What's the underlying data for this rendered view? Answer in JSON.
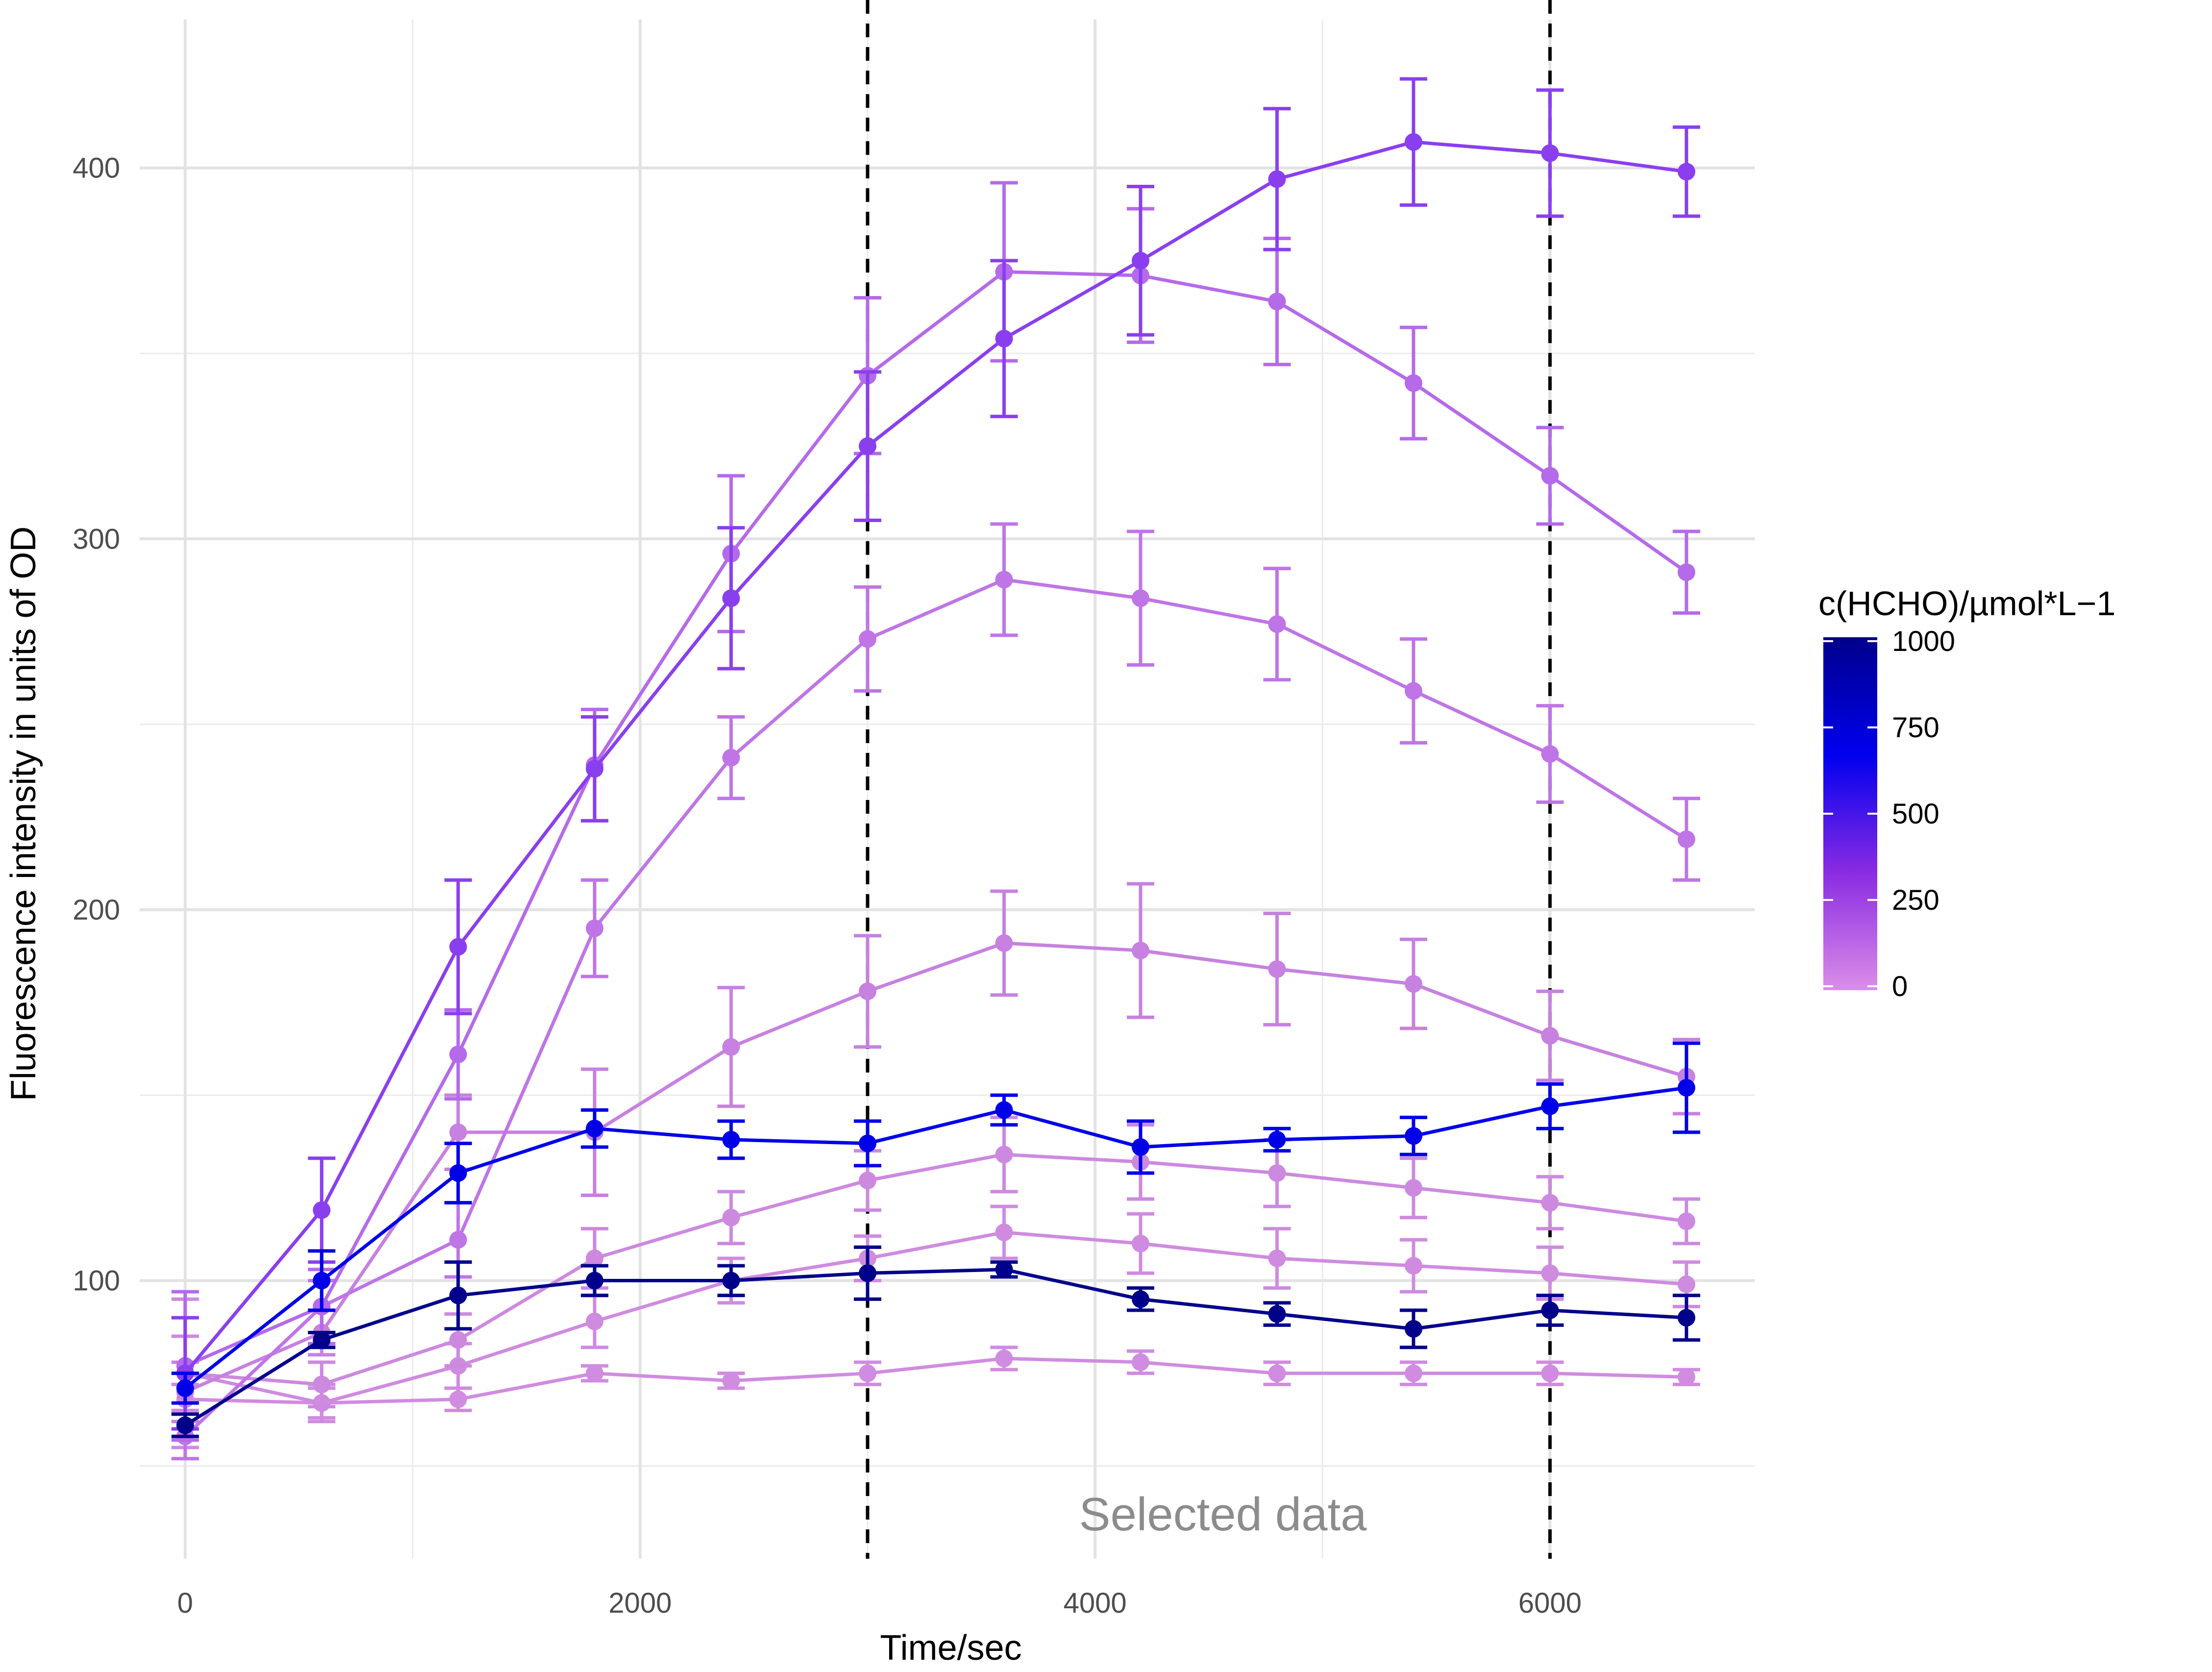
{
  "chart_data": {
    "type": "line",
    "title": "",
    "xlabel": "Time/sec",
    "ylabel": "Fluorescence intensity in units of OD",
    "xlim": [
      -200,
      6900
    ],
    "ylim": [
      25,
      440
    ],
    "x_ticks": [
      0,
      2000,
      4000,
      6000
    ],
    "y_ticks": [
      100,
      200,
      300,
      400
    ],
    "grid": true,
    "x": [
      0,
      600,
      1200,
      1800,
      2400,
      3000,
      3600,
      4200,
      4800,
      5400,
      6000,
      6600
    ],
    "annotation": "Selected data",
    "vlines": [
      3000,
      6000
    ],
    "legend": {
      "title": "c(HCHO)/µmol*L−1",
      "position": "right",
      "ticks": [
        "1000",
        "750",
        "500",
        "250",
        "0"
      ],
      "gradient": [
        "#00008b",
        "#0000ee",
        "#8a2be2",
        "#da8ee8"
      ]
    },
    "series": [
      {
        "conc": 0,
        "color": "#d08ce0",
        "values": [
          68,
          67,
          68,
          75,
          73,
          75,
          79,
          78,
          75,
          75,
          75,
          74
        ],
        "errors": [
          4,
          4,
          3,
          2,
          2,
          3,
          3,
          3,
          3,
          3,
          3,
          2
        ]
      },
      {
        "conc": 15,
        "color": "#cf8be0",
        "values": [
          75,
          67,
          77,
          89,
          100,
          106,
          113,
          110,
          106,
          104,
          102,
          99
        ],
        "errors": [
          20,
          5,
          6,
          7,
          6,
          6,
          7,
          8,
          8,
          7,
          7,
          6
        ]
      },
      {
        "conc": 25,
        "color": "#cd89e0",
        "values": [
          75,
          72,
          84,
          106,
          117,
          127,
          134,
          132,
          129,
          125,
          121,
          116
        ],
        "errors": [
          10,
          6,
          7,
          8,
          7,
          8,
          10,
          10,
          9,
          8,
          7,
          6
        ]
      },
      {
        "conc": 50,
        "color": "#c781e0",
        "values": [
          70,
          86,
          140,
          140,
          163,
          178,
          191,
          189,
          184,
          180,
          166,
          155
        ],
        "errors": [
          8,
          6,
          10,
          17,
          16,
          15,
          14,
          18,
          15,
          12,
          12,
          10
        ]
      },
      {
        "conc": 100,
        "color": "#bf75e6",
        "values": [
          58,
          93,
          111,
          195,
          241,
          273,
          289,
          284,
          277,
          259,
          242,
          219
        ],
        "errors": [
          6,
          7,
          10,
          13,
          11,
          14,
          15,
          18,
          15,
          14,
          13,
          11
        ]
      },
      {
        "conc": 150,
        "color": "#b56aea",
        "values": [
          77,
          93,
          161,
          239,
          296,
          344,
          372,
          371,
          364,
          342,
          317,
          291
        ],
        "errors": [
          20,
          10,
          12,
          15,
          21,
          21,
          24,
          18,
          17,
          15,
          13,
          11
        ]
      },
      {
        "conc": 250,
        "color": "#8a3fee",
        "values": [
          75,
          119,
          190,
          238,
          284,
          325,
          354,
          375,
          397,
          407,
          404,
          399
        ],
        "errors": [
          15,
          14,
          18,
          14,
          19,
          20,
          21,
          20,
          19,
          17,
          17,
          12
        ]
      },
      {
        "conc": 500,
        "color": "#0000e8",
        "values": [
          71,
          100,
          129,
          141,
          138,
          137,
          146,
          136,
          138,
          139,
          147,
          152
        ],
        "errors": [
          4,
          8,
          8,
          5,
          5,
          6,
          4,
          7,
          3,
          5,
          6,
          12
        ]
      },
      {
        "conc": 1000,
        "color": "#00008b",
        "values": [
          61,
          84,
          96,
          100,
          100,
          102,
          103,
          95,
          91,
          87,
          92,
          90
        ],
        "errors": [
          3,
          2,
          9,
          4,
          4,
          7,
          2,
          3,
          3,
          5,
          4,
          6
        ]
      }
    ]
  }
}
